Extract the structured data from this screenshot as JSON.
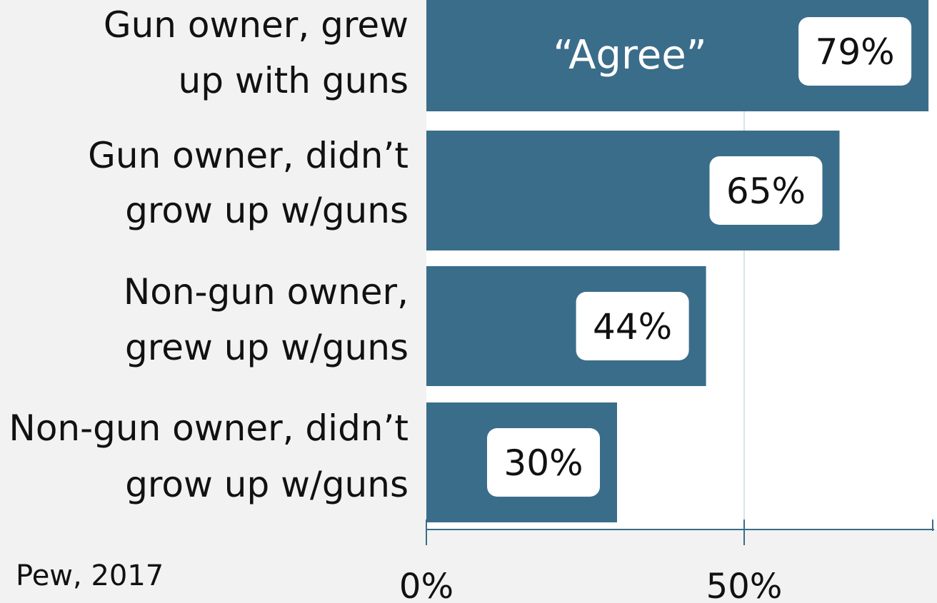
{
  "chart_data": {
    "type": "bar",
    "orientation": "horizontal",
    "categories": [
      [
        "Gun owner, grew",
        "up with guns"
      ],
      [
        "Gun owner, didn’t",
        "grow up w/guns"
      ],
      [
        "Non-gun owner,",
        "grew up w/guns"
      ],
      [
        "Non-gun owner, didn’t",
        "grow up w/guns"
      ]
    ],
    "series": [
      {
        "name": "“Agree”",
        "values": [
          79,
          65,
          44,
          30
        ]
      }
    ],
    "value_labels": [
      "79%",
      "65%",
      "44%",
      "30%"
    ],
    "xticks": [
      0,
      50
    ],
    "xtick_labels": [
      "0%",
      "50%"
    ],
    "xlim": [
      0,
      80
    ],
    "grid": true,
    "source": "Pew, 2017",
    "colors": {
      "bar": "#3a6d8a",
      "plot_bg": "#ffffff",
      "page_bg": "#f2f2f2",
      "grid": "#d8e4e8",
      "axis": "#3a6d8a",
      "label_box": "#ffffff"
    }
  }
}
